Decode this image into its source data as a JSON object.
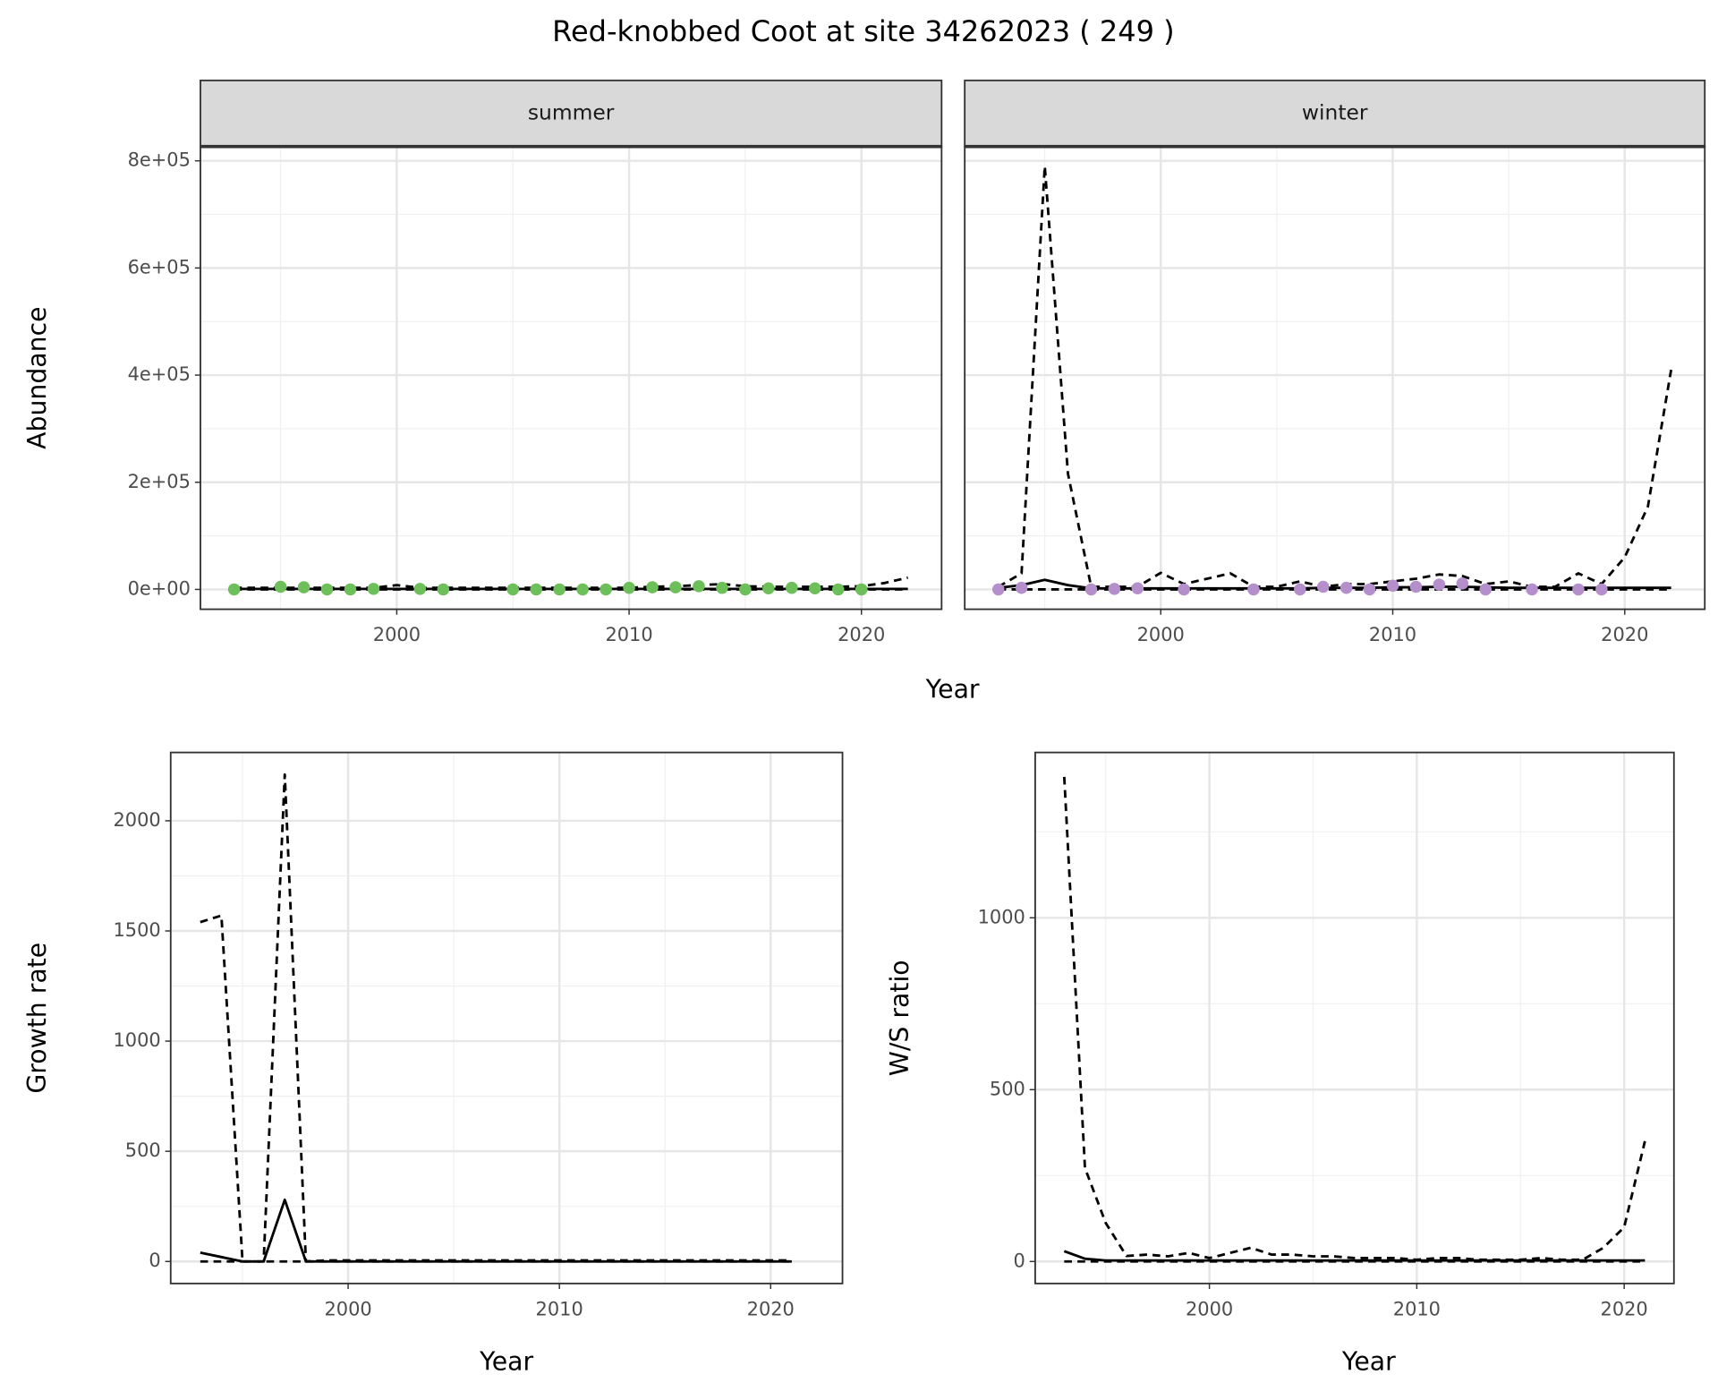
{
  "title": "Red-knobbed Coot at site 34262023 ( 249 )",
  "chart_data": [
    {
      "type": "line",
      "facet": "summer",
      "xlabel": "Year",
      "ylabel": "Abundance",
      "grid": true,
      "xlim": [
        1991.55,
        2023.45
      ],
      "xticks": [
        2000,
        2010,
        2020
      ],
      "xminor": [
        1995,
        2005,
        2015
      ],
      "ylim": [
        -37000,
        826700
      ],
      "yticks": [
        {
          "value": 0,
          "label": "0e+00"
        },
        {
          "value": 200000,
          "label": "2e+05"
        },
        {
          "value": 400000,
          "label": "4e+05"
        },
        {
          "value": 600000,
          "label": "6e+05"
        },
        {
          "value": 800000,
          "label": "8e+05"
        }
      ],
      "yminor": [
        100000,
        300000,
        500000,
        700000
      ],
      "x": [
        1993,
        1994,
        1995,
        1996,
        1997,
        1998,
        1999,
        2000,
        2001,
        2002,
        2003,
        2004,
        2005,
        2006,
        2007,
        2008,
        2009,
        2010,
        2011,
        2012,
        2013,
        2014,
        2015,
        2016,
        2017,
        2018,
        2019,
        2020,
        2021,
        2022
      ],
      "series": [
        {
          "style": "dashed",
          "color": "#000000",
          "values": [
            3000,
            3000,
            3000,
            3000,
            3000,
            3000,
            3000,
            8000,
            3000,
            3000,
            3000,
            3000,
            3000,
            3000,
            3000,
            3000,
            3000,
            3000,
            5000,
            6000,
            8000,
            10000,
            6000,
            5000,
            5000,
            5000,
            5000,
            6000,
            12000,
            22000
          ]
        },
        {
          "style": "dashed",
          "color": "#000000",
          "values": [
            0,
            0,
            0,
            0,
            0,
            0,
            0,
            0,
            0,
            0,
            0,
            0,
            0,
            0,
            0,
            0,
            0,
            0,
            0,
            0,
            0,
            0,
            0,
            0,
            0,
            0,
            0,
            0,
            0,
            0
          ]
        },
        {
          "style": "solid",
          "color": "#000000",
          "values": [
            1000,
            1000,
            1000,
            1000,
            1000,
            1000,
            1000,
            1000,
            1000,
            1000,
            1000,
            1000,
            1000,
            1000,
            1000,
            1000,
            1000,
            1000,
            1000,
            1000,
            1000,
            1000,
            1000,
            1000,
            1000,
            1000,
            1000,
            1000,
            1000,
            1000
          ]
        },
        {
          "style": "points",
          "color": "#6dbf5a",
          "values": [
            0,
            null,
            5000,
            4000,
            0,
            0,
            1000,
            null,
            1000,
            0,
            null,
            null,
            0,
            0,
            0,
            0,
            0,
            3000,
            4000,
            4000,
            6000,
            3000,
            0,
            2000,
            3000,
            2000,
            0,
            0,
            null,
            null
          ]
        }
      ]
    },
    {
      "type": "line",
      "facet": "winter",
      "grid": true,
      "show_ytick_labels": false,
      "xlim": [
        1991.55,
        2023.45
      ],
      "xticks": [
        2000,
        2010,
        2020
      ],
      "xminor": [
        1995,
        2005,
        2015
      ],
      "ylim": [
        -37000,
        826700
      ],
      "yticks": [
        0,
        200000,
        400000,
        600000,
        800000
      ],
      "yminor": [
        100000,
        300000,
        500000,
        700000
      ],
      "x": [
        1993,
        1994,
        1995,
        1996,
        1997,
        1998,
        1999,
        2000,
        2001,
        2002,
        2003,
        2004,
        2005,
        2006,
        2007,
        2008,
        2009,
        2010,
        2011,
        2012,
        2013,
        2014,
        2015,
        2016,
        2017,
        2018,
        2019,
        2020,
        2021,
        2022
      ],
      "series": [
        {
          "style": "dashed",
          "color": "#000000",
          "values": [
            5000,
            30000,
            790000,
            216000,
            5000,
            5000,
            5000,
            31000,
            10000,
            20000,
            30000,
            5000,
            5000,
            15000,
            5000,
            10000,
            10000,
            15000,
            20000,
            28000,
            25000,
            10000,
            15000,
            5000,
            5000,
            30000,
            10000,
            60000,
            155000,
            410000
          ]
        },
        {
          "style": "dashed",
          "color": "#000000",
          "values": [
            0,
            0,
            0,
            0,
            0,
            0,
            0,
            0,
            0,
            0,
            0,
            0,
            0,
            0,
            0,
            0,
            0,
            0,
            0,
            0,
            0,
            0,
            0,
            0,
            0,
            0,
            0,
            0,
            0,
            0
          ]
        },
        {
          "style": "solid",
          "color": "#000000",
          "values": [
            3000,
            8000,
            18000,
            8000,
            2000,
            2000,
            2000,
            2000,
            2000,
            2000,
            2000,
            2000,
            2000,
            2000,
            3000,
            3000,
            3000,
            4000,
            4000,
            5000,
            5000,
            4000,
            3000,
            3000,
            3000,
            3000,
            3000,
            3000,
            3000,
            3000
          ]
        },
        {
          "style": "points",
          "color": "#b48fcb",
          "values": [
            0,
            3000,
            null,
            null,
            0,
            1000,
            2000,
            null,
            0,
            null,
            null,
            0,
            null,
            0,
            5000,
            3000,
            0,
            7000,
            5000,
            9000,
            11000,
            0,
            null,
            0,
            null,
            0,
            0,
            null,
            null,
            null
          ]
        }
      ]
    },
    {
      "type": "line",
      "xlabel": "Year",
      "ylabel": "Growth rate",
      "grid": true,
      "xlim": [
        1991.6,
        2023.4
      ],
      "xticks": [
        2000,
        2010,
        2020
      ],
      "xminor": [
        1995,
        2005,
        2015
      ],
      "ylim": [
        -100,
        2310
      ],
      "yticks": [
        0,
        500,
        1000,
        1500,
        2000
      ],
      "yminor": [
        250,
        750,
        1250,
        1750
      ],
      "x": [
        1993,
        1994,
        1995,
        1996,
        1997,
        1998,
        1999,
        2000,
        2001,
        2002,
        2003,
        2004,
        2005,
        2006,
        2007,
        2008,
        2009,
        2010,
        2011,
        2012,
        2013,
        2014,
        2015,
        2016,
        2017,
        2018,
        2019,
        2020,
        2021
      ],
      "series": [
        {
          "style": "dashed",
          "color": "#000000",
          "values": [
            1540,
            1570,
            0,
            0,
            2210,
            0,
            5,
            5,
            5,
            5,
            5,
            5,
            5,
            5,
            5,
            5,
            5,
            5,
            5,
            5,
            5,
            5,
            5,
            5,
            5,
            5,
            5,
            5,
            5
          ]
        },
        {
          "style": "dashed",
          "color": "#000000",
          "values": [
            0,
            0,
            0,
            0,
            0,
            0,
            0,
            0,
            0,
            0,
            0,
            0,
            0,
            0,
            0,
            0,
            0,
            0,
            0,
            0,
            0,
            0,
            0,
            0,
            0,
            0,
            0,
            0,
            0
          ]
        },
        {
          "style": "solid",
          "color": "#000000",
          "values": [
            40,
            20,
            0,
            0,
            280,
            0,
            0,
            0,
            0,
            0,
            0,
            0,
            0,
            0,
            0,
            0,
            0,
            0,
            0,
            0,
            0,
            0,
            0,
            0,
            0,
            0,
            0,
            0,
            0
          ]
        }
      ]
    },
    {
      "type": "line",
      "xlabel": "Year",
      "ylabel": "W/S ratio",
      "grid": true,
      "xlim": [
        1991.6,
        2022.4
      ],
      "xticks": [
        2000,
        2010,
        2020
      ],
      "xminor": [
        1995,
        2005,
        2015
      ],
      "ylim": [
        -64,
        1481
      ],
      "yticks": [
        0,
        500,
        1000
      ],
      "yminor": [
        250,
        750,
        1250
      ],
      "x": [
        1993,
        1994,
        1995,
        1996,
        1997,
        1998,
        1999,
        2000,
        2001,
        2002,
        2003,
        2004,
        2005,
        2006,
        2007,
        2008,
        2009,
        2010,
        2011,
        2012,
        2013,
        2014,
        2015,
        2016,
        2017,
        2018,
        2019,
        2020,
        2021
      ],
      "series": [
        {
          "style": "dashed",
          "color": "#000000",
          "values": [
            1410,
            272,
            112,
            16,
            20,
            15,
            25,
            10,
            25,
            40,
            20,
            20,
            15,
            15,
            10,
            10,
            10,
            5,
            10,
            10,
            5,
            5,
            5,
            10,
            5,
            5,
            40,
            100,
            350
          ]
        },
        {
          "style": "dashed",
          "color": "#000000",
          "values": [
            0,
            0,
            0,
            0,
            0,
            0,
            0,
            0,
            0,
            0,
            0,
            0,
            0,
            0,
            0,
            0,
            0,
            0,
            0,
            0,
            0,
            0,
            0,
            0,
            0,
            0,
            0,
            0,
            0
          ]
        },
        {
          "style": "solid",
          "color": "#000000",
          "values": [
            30,
            8,
            3,
            3,
            3,
            3,
            3,
            3,
            3,
            3,
            3,
            3,
            3,
            3,
            3,
            3,
            3,
            3,
            3,
            3,
            3,
            3,
            3,
            3,
            3,
            3,
            3,
            3,
            3
          ]
        }
      ]
    }
  ]
}
